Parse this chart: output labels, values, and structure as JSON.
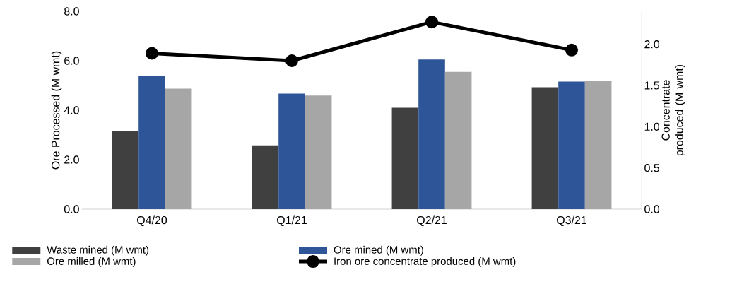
{
  "chart_data": {
    "type": "bar",
    "categories": [
      "Q4/20",
      "Q1/21",
      "Q2/21",
      "Q3/21"
    ],
    "ylabel": "Ore Processed (M wmt)",
    "y2label": "Concentrate produced (M wmt)",
    "ylim": [
      0,
      8
    ],
    "yticks": [
      {
        "value": 0,
        "label": "0.0"
      },
      {
        "value": 2,
        "label": "2.0"
      },
      {
        "value": 4,
        "label": "4.0"
      },
      {
        "value": 6,
        "label": "6.0"
      },
      {
        "value": 8,
        "label": "8.0"
      }
    ],
    "y2lim": [
      0,
      2.4
    ],
    "y2ticks": [
      {
        "value": 0,
        "label": "0.0"
      },
      {
        "value": 0.5,
        "label": "0.5"
      },
      {
        "value": 1,
        "label": "1.0"
      },
      {
        "value": 1.5,
        "label": "1.5"
      },
      {
        "value": 2,
        "label": "2.0"
      }
    ],
    "series": [
      {
        "name": "Waste mined (M wmt)",
        "color": "#404040",
        "values": [
          3.17,
          2.58,
          4.1,
          4.93
        ]
      },
      {
        "name": "Ore mined (M wmt)",
        "color": "#2e5597",
        "values": [
          5.39,
          4.67,
          6.05,
          5.16
        ]
      },
      {
        "name": "Ore milled (M wmt)",
        "color": "#a6a6a6",
        "values": [
          4.87,
          4.59,
          5.55,
          5.17
        ]
      },
      {
        "name": "Iron ore concentrate produced (M wmt)",
        "type": "line",
        "axis": "y2",
        "color": "#000000",
        "marker": "circle",
        "values": [
          1.89,
          1.8,
          2.27,
          1.93
        ]
      }
    ],
    "grid": false,
    "legend": "bottom"
  }
}
